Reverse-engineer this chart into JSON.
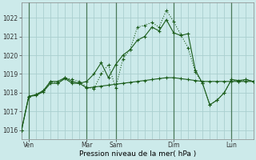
{
  "xlabel": "Pression niveau de la mer( hPa )",
  "ylim": [
    1015.5,
    1022.8
  ],
  "yticks": [
    1016,
    1017,
    1018,
    1019,
    1020,
    1021,
    1022
  ],
  "xlim": [
    0,
    96
  ],
  "xtick_positions": [
    3,
    27,
    39,
    63,
    87
  ],
  "xtick_labels": [
    "Ven",
    "Mar",
    "Sam",
    "Dim",
    "Lun"
  ],
  "vlines": [
    3,
    27,
    39,
    63,
    87
  ],
  "bg_color": "#cceaea",
  "grid_color": "#aacfcf",
  "line_color": "#1a5c1a",
  "line1_x": [
    0,
    3,
    6,
    9,
    12,
    15,
    18,
    21,
    24,
    27,
    30,
    33,
    36,
    39,
    42,
    45,
    48,
    51,
    54,
    57,
    60,
    63,
    66,
    69,
    72,
    75,
    78,
    81,
    84,
    87,
    90,
    93,
    96
  ],
  "line1_y": [
    1016.0,
    1017.8,
    1017.9,
    1018.1,
    1018.6,
    1018.5,
    1018.8,
    1018.7,
    1018.6,
    1018.3,
    1018.2,
    1019.0,
    1019.5,
    1018.25,
    1019.8,
    1020.3,
    1021.5,
    1021.6,
    1021.75,
    1021.5,
    1022.4,
    1021.8,
    1021.1,
    1020.4,
    1019.1,
    1018.5,
    1017.35,
    1017.6,
    1018.0,
    1018.7,
    1018.6,
    1018.7,
    1018.6
  ],
  "line2_x": [
    0,
    3,
    6,
    9,
    12,
    15,
    18,
    21,
    24,
    27,
    30,
    33,
    36,
    39,
    42,
    45,
    48,
    51,
    54,
    57,
    60,
    63,
    66,
    69,
    72,
    75,
    78,
    81,
    84,
    87,
    90,
    93,
    96
  ],
  "line2_y": [
    1016.0,
    1017.8,
    1017.85,
    1018.05,
    1018.5,
    1018.5,
    1018.75,
    1018.5,
    1018.5,
    1018.25,
    1018.3,
    1018.35,
    1018.4,
    1018.45,
    1018.5,
    1018.55,
    1018.6,
    1018.65,
    1018.7,
    1018.75,
    1018.8,
    1018.8,
    1018.75,
    1018.7,
    1018.65,
    1018.6,
    1018.6,
    1018.6,
    1018.6,
    1018.6,
    1018.6,
    1018.6,
    1018.6
  ],
  "line3_x": [
    0,
    3,
    6,
    9,
    12,
    15,
    18,
    21,
    24,
    27,
    30,
    33,
    36,
    39,
    42,
    45,
    48,
    51,
    54,
    57,
    60,
    63,
    66,
    69,
    72,
    75,
    78,
    81,
    84,
    87,
    90,
    93,
    96
  ],
  "line3_y": [
    1016.0,
    1017.8,
    1017.9,
    1018.1,
    1018.6,
    1018.6,
    1018.8,
    1018.6,
    1018.5,
    1018.6,
    1019.0,
    1019.6,
    1018.8,
    1019.5,
    1020.0,
    1020.3,
    1020.8,
    1021.0,
    1021.5,
    1021.3,
    1021.9,
    1021.2,
    1021.05,
    1021.15,
    1019.2,
    1018.5,
    1017.35,
    1017.6,
    1018.0,
    1018.7,
    1018.65,
    1018.7,
    1018.6
  ]
}
